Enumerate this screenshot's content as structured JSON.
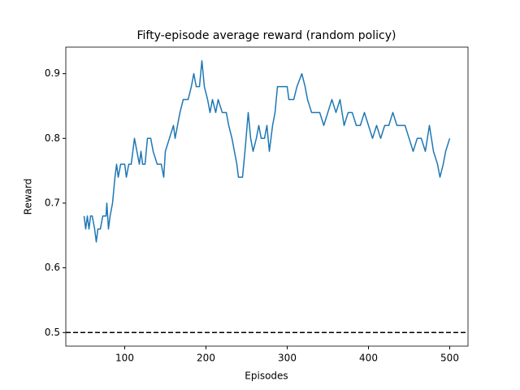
{
  "chart_data": {
    "type": "line",
    "title": "Fifty-episode average reward (random policy)",
    "x_label": "Episodes",
    "y_label": "Reward",
    "x": [
      50,
      52,
      54,
      56,
      58,
      60,
      63,
      65,
      67,
      70,
      73,
      77,
      78,
      80,
      82,
      85,
      88,
      90,
      92,
      95,
      100,
      102,
      105,
      108,
      110,
      112,
      115,
      118,
      120,
      122,
      125,
      128,
      132,
      135,
      140,
      145,
      148,
      150,
      155,
      160,
      162,
      165,
      168,
      172,
      178,
      182,
      185,
      188,
      192,
      195,
      198,
      202,
      205,
      208,
      212,
      215,
      220,
      225,
      228,
      232,
      235,
      238,
      240,
      245,
      248,
      252,
      255,
      258,
      262,
      265,
      268,
      272,
      275,
      278,
      282,
      285,
      288,
      295,
      300,
      302,
      308,
      312,
      318,
      322,
      325,
      330,
      335,
      340,
      345,
      350,
      355,
      360,
      365,
      370,
      375,
      380,
      385,
      390,
      395,
      400,
      405,
      410,
      415,
      420,
      425,
      430,
      435,
      440,
      445,
      450,
      455,
      460,
      465,
      470,
      475,
      480,
      485,
      488,
      492,
      495,
      500
    ],
    "series": [
      {
        "name": "Reward",
        "color": "#1f77b4",
        "values": [
          0.68,
          0.66,
          0.68,
          0.66,
          0.68,
          0.68,
          0.66,
          0.64,
          0.66,
          0.66,
          0.68,
          0.68,
          0.7,
          0.66,
          0.68,
          0.7,
          0.74,
          0.76,
          0.74,
          0.76,
          0.76,
          0.74,
          0.76,
          0.76,
          0.78,
          0.8,
          0.78,
          0.76,
          0.78,
          0.76,
          0.76,
          0.8,
          0.8,
          0.78,
          0.76,
          0.76,
          0.74,
          0.78,
          0.8,
          0.82,
          0.8,
          0.82,
          0.84,
          0.86,
          0.86,
          0.88,
          0.9,
          0.88,
          0.88,
          0.92,
          0.88,
          0.86,
          0.84,
          0.86,
          0.84,
          0.86,
          0.84,
          0.84,
          0.82,
          0.8,
          0.78,
          0.76,
          0.74,
          0.74,
          0.78,
          0.84,
          0.8,
          0.78,
          0.8,
          0.82,
          0.8,
          0.8,
          0.82,
          0.78,
          0.82,
          0.84,
          0.88,
          0.88,
          0.88,
          0.86,
          0.86,
          0.88,
          0.9,
          0.88,
          0.86,
          0.84,
          0.84,
          0.84,
          0.82,
          0.84,
          0.86,
          0.84,
          0.86,
          0.82,
          0.84,
          0.84,
          0.82,
          0.82,
          0.84,
          0.82,
          0.8,
          0.82,
          0.8,
          0.82,
          0.82,
          0.84,
          0.82,
          0.82,
          0.82,
          0.8,
          0.78,
          0.8,
          0.8,
          0.78,
          0.82,
          0.78,
          0.76,
          0.74,
          0.76,
          0.78,
          0.8
        ]
      }
    ],
    "hline": {
      "value": 0.5,
      "color": "#000000"
    },
    "xlim": [
      27.5,
      522.5
    ],
    "ylim": [
      0.479,
      0.941
    ],
    "xticks": [
      100,
      200,
      300,
      400,
      500
    ],
    "yticks": [
      0.5,
      0.6,
      0.7,
      0.8,
      0.9
    ],
    "grid": false
  }
}
